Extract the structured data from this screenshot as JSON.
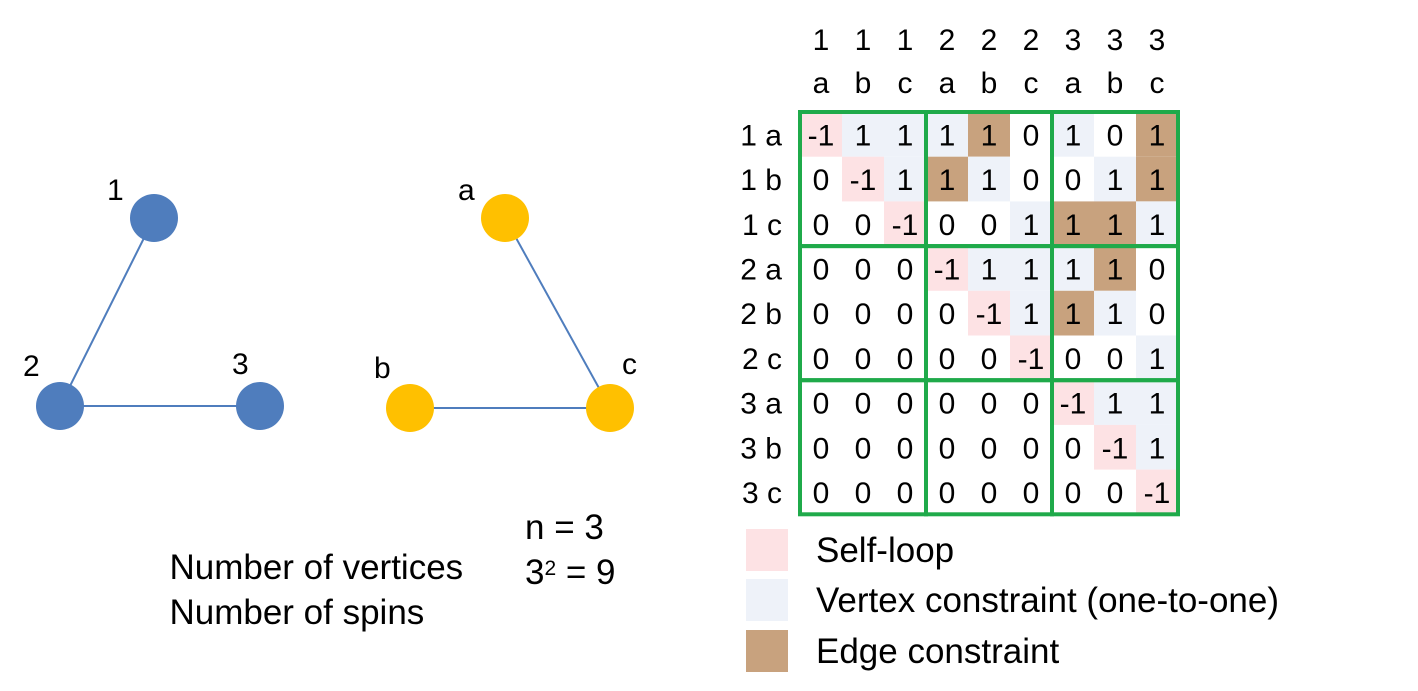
{
  "graph_g": {
    "nodes": [
      {
        "id": "1",
        "label": "1"
      },
      {
        "id": "2",
        "label": "2"
      },
      {
        "id": "3",
        "label": "3"
      }
    ],
    "edges": [
      [
        "1",
        "2"
      ],
      [
        "2",
        "3"
      ]
    ],
    "node_color": "#4F7DBD"
  },
  "graph_h": {
    "nodes": [
      {
        "id": "a",
        "label": "a"
      },
      {
        "id": "b",
        "label": "b"
      },
      {
        "id": "c",
        "label": "c"
      }
    ],
    "edges": [
      [
        "a",
        "c"
      ],
      [
        "b",
        "c"
      ]
    ],
    "node_color": "#FFC000"
  },
  "edge_color": "#4F7DBD",
  "info": {
    "vertices_label": "Number of vertices",
    "vertices_value": "n = 3",
    "spins_label": "Number of spins",
    "spins_base": "3",
    "spins_exp": "2",
    "spins_result": "= 9"
  },
  "matrix": {
    "col_top": [
      "1",
      "1",
      "1",
      "2",
      "2",
      "2",
      "3",
      "3",
      "3"
    ],
    "col_bottom": [
      "a",
      "b",
      "c",
      "a",
      "b",
      "c",
      "a",
      "b",
      "c"
    ],
    "row_labels": [
      "1 a",
      "1 b",
      "1 c",
      "2 a",
      "2 b",
      "2 c",
      "3 a",
      "3 b",
      "3 c"
    ],
    "values": [
      [
        "-1",
        "1",
        "1",
        "1",
        "1",
        "0",
        "1",
        "0",
        "1"
      ],
      [
        "0",
        "-1",
        "1",
        "1",
        "1",
        "0",
        "0",
        "1",
        "1"
      ],
      [
        "0",
        "0",
        "-1",
        "0",
        "0",
        "1",
        "1",
        "1",
        "1"
      ],
      [
        "0",
        "0",
        "0",
        "-1",
        "1",
        "1",
        "1",
        "1",
        "0"
      ],
      [
        "0",
        "0",
        "0",
        "0",
        "-1",
        "1",
        "1",
        "1",
        "0"
      ],
      [
        "0",
        "0",
        "0",
        "0",
        "0",
        "-1",
        "0",
        "0",
        "1"
      ],
      [
        "0",
        "0",
        "0",
        "0",
        "0",
        "0",
        "-1",
        "1",
        "1"
      ],
      [
        "0",
        "0",
        "0",
        "0",
        "0",
        "0",
        "0",
        "-1",
        "1"
      ],
      [
        "0",
        "0",
        "0",
        "0",
        "0",
        "0",
        "0",
        "0",
        "-1"
      ]
    ],
    "cell_types": [
      [
        "S",
        "V",
        "V",
        "V",
        "E",
        "N",
        "V",
        "N",
        "E"
      ],
      [
        "N",
        "S",
        "V",
        "E",
        "V",
        "N",
        "N",
        "V",
        "E"
      ],
      [
        "N",
        "N",
        "S",
        "N",
        "N",
        "V",
        "E",
        "E",
        "V"
      ],
      [
        "N",
        "N",
        "N",
        "S",
        "V",
        "V",
        "V",
        "E",
        "N"
      ],
      [
        "N",
        "N",
        "N",
        "N",
        "S",
        "V",
        "E",
        "V",
        "N"
      ],
      [
        "N",
        "N",
        "N",
        "N",
        "N",
        "S",
        "N",
        "N",
        "V"
      ],
      [
        "N",
        "N",
        "N",
        "N",
        "N",
        "N",
        "S",
        "V",
        "V"
      ],
      [
        "N",
        "N",
        "N",
        "N",
        "N",
        "N",
        "N",
        "S",
        "V"
      ],
      [
        "N",
        "N",
        "N",
        "N",
        "N",
        "N",
        "N",
        "N",
        "S"
      ]
    ],
    "block_border_color": "#1FAA4A"
  },
  "legend": [
    {
      "type": "S",
      "label": "Self-loop",
      "color": "#FDE2E4"
    },
    {
      "type": "V",
      "label": "Vertex constraint (one-to-one)",
      "color": "#EEF2F9"
    },
    {
      "type": "E",
      "label": "Edge constraint",
      "color": "#C8A27E"
    }
  ]
}
